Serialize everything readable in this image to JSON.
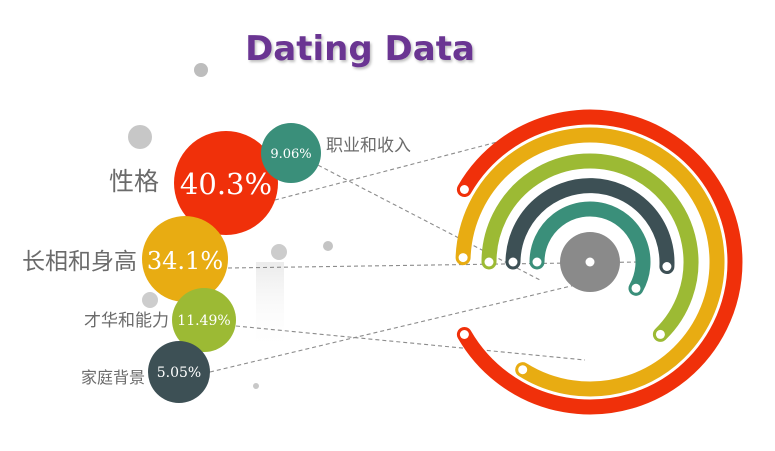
{
  "chart_data": {
    "type": "bubble-ring",
    "title": "Dating Data",
    "series": [
      {
        "name": "性格",
        "label": "40.3%",
        "value": 40.3,
        "color": "#f0300a"
      },
      {
        "name": "长相和身高",
        "label": "34.1%",
        "value": 34.1,
        "color": "#e8ac12"
      },
      {
        "name": "才华和能力",
        "label": "11.49%",
        "value": 11.49,
        "color": "#9cba34"
      },
      {
        "name": "职业和收入",
        "label": "9.06%",
        "value": 9.06,
        "color": "#3a8f7a"
      },
      {
        "name": "家庭背景",
        "label": "5.05%",
        "value": 5.05,
        "color": "#3d5055"
      }
    ]
  }
}
